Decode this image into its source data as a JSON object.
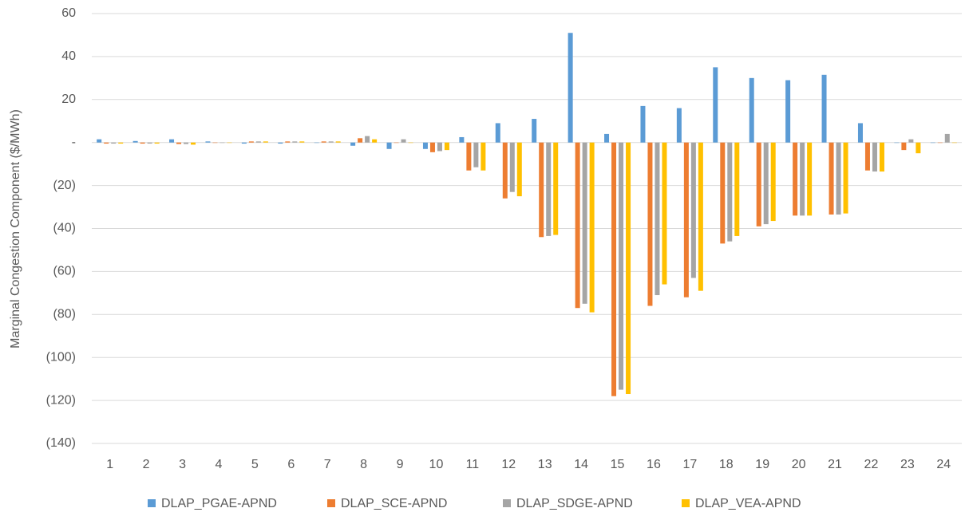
{
  "chart_data": {
    "type": "bar",
    "y_label": "Marginal Congestion Component ($/MWh)",
    "categories": [
      "1",
      "2",
      "3",
      "4",
      "5",
      "6",
      "7",
      "8",
      "9",
      "10",
      "11",
      "12",
      "13",
      "14",
      "15",
      "16",
      "17",
      "18",
      "19",
      "20",
      "21",
      "22",
      "23",
      "24"
    ],
    "series": [
      {
        "name": "DLAP_PGAE-APND",
        "color": "#5b9bd5",
        "values": [
          1.5,
          0.7,
          1.5,
          0.5,
          -0.5,
          -0.5,
          0,
          -1.5,
          -3,
          -3,
          2.5,
          9,
          11,
          51,
          4,
          17,
          16,
          35,
          30,
          29,
          31.5,
          9,
          0,
          0
        ]
      },
      {
        "name": "DLAP_SCE-APND",
        "color": "#ed7d31",
        "values": [
          -0.5,
          -0.5,
          -0.7,
          0,
          0.5,
          0.5,
          0.5,
          2,
          0,
          -4.5,
          -13,
          -26,
          -44,
          -77,
          -118,
          -76,
          -72,
          -47,
          -39,
          -34,
          -33.5,
          -13,
          -3.5,
          0
        ]
      },
      {
        "name": "DLAP_SDGE-APND",
        "color": "#a5a5a5",
        "values": [
          -0.5,
          -0.5,
          -0.7,
          0,
          0.5,
          0.5,
          0.5,
          3,
          1.5,
          -4,
          -11.5,
          -23,
          -43.5,
          -75,
          -115,
          -71,
          -63,
          -46,
          -38,
          -34,
          -33.5,
          -13.5,
          1.5,
          4
        ]
      },
      {
        "name": "DLAP_VEA-APND",
        "color": "#ffc000",
        "values": [
          -0.5,
          -0.5,
          -1,
          0,
          0.5,
          0.5,
          0.5,
          1.5,
          0,
          -3.5,
          -13,
          -25,
          -43,
          -79,
          -117,
          -66,
          -69,
          -43.5,
          -36.5,
          -34,
          -33,
          -13.5,
          -5,
          0
        ]
      }
    ],
    "ylim": [
      -140,
      60
    ],
    "yticks": [
      {
        "value": -140,
        "label": "(140)"
      },
      {
        "value": -120,
        "label": "(120)"
      },
      {
        "value": -100,
        "label": "(100)"
      },
      {
        "value": -80,
        "label": "(80)"
      },
      {
        "value": -60,
        "label": "(60)"
      },
      {
        "value": -40,
        "label": "(40)"
      },
      {
        "value": -20,
        "label": "(20)"
      },
      {
        "value": 0,
        "label": "-"
      },
      20,
      40,
      60
    ],
    "grid": true,
    "legend": "bottom"
  }
}
